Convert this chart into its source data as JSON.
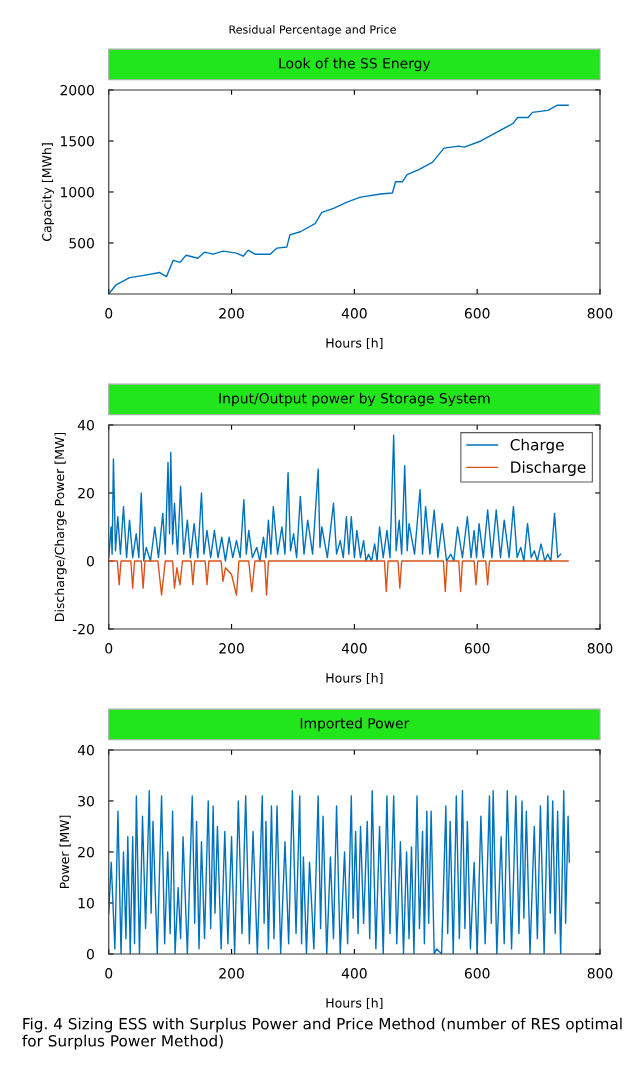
{
  "chart_data": [
    {
      "type": "line",
      "title": "Look of the SS Energy",
      "xlabel": "Hours [h]",
      "ylabel": "Capacity [MWh]",
      "annotations": [
        "Residual Percentage and Price"
      ],
      "xlim": [
        0,
        800
      ],
      "xticks": [
        0,
        200,
        400,
        600,
        800
      ],
      "ylim": [
        0,
        2000
      ],
      "yticks": [
        500,
        1000,
        1500,
        2000
      ],
      "series": [
        {
          "color": "#0072bd",
          "x": [
            0,
            12,
            34,
            55,
            83,
            94,
            105,
            116,
            126,
            145,
            156,
            170,
            186,
            208,
            219,
            227,
            238,
            263,
            274,
            290,
            295,
            312,
            336,
            347,
            366,
            388,
            410,
            443,
            462,
            467,
            478,
            486,
            505,
            527,
            546,
            570,
            579,
            606,
            633,
            658,
            666,
            683,
            690,
            715,
            730,
            748
          ],
          "values": [
            0,
            90,
            160,
            180,
            210,
            170,
            330,
            310,
            380,
            350,
            410,
            390,
            420,
            400,
            370,
            430,
            390,
            390,
            450,
            460,
            580,
            610,
            690,
            800,
            840,
            900,
            950,
            980,
            990,
            1100,
            1100,
            1170,
            1220,
            1290,
            1430,
            1450,
            1440,
            1500,
            1590,
            1670,
            1730,
            1730,
            1780,
            1800,
            1850,
            1850
          ]
        }
      ]
    },
    {
      "type": "line",
      "title": "Input/Output power by Storage System",
      "xlabel": "Hours [h]",
      "ylabel": "Discharge/Charge Power [MW]",
      "legend": "top right",
      "xlim": [
        0,
        800
      ],
      "xticks": [
        0,
        200,
        400,
        600,
        800
      ],
      "ylim": [
        -20,
        40
      ],
      "yticks": [
        -20,
        0,
        20,
        40
      ],
      "series": [
        {
          "name": "Charge",
          "color": "#0072bd",
          "x": [
            0,
            3.8,
            5.5,
            7.6,
            11,
            14.7,
            19,
            24,
            29,
            33.8,
            39,
            44.7,
            49,
            52.9,
            57,
            61,
            68,
            75,
            81,
            88,
            92,
            96.5,
            99,
            101,
            104,
            107,
            112,
            117,
            122,
            128,
            133,
            139,
            145,
            151,
            155,
            160,
            166,
            172,
            178,
            184,
            190,
            196,
            202,
            208,
            214,
            220,
            224,
            228,
            234,
            241,
            246,
            252,
            256,
            260,
            264,
            268,
            275,
            282,
            287,
            292,
            296,
            301,
            306,
            312,
            318,
            324,
            332,
            341,
            344,
            347,
            356,
            366,
            371,
            377,
            382,
            387,
            391,
            395,
            400,
            404,
            410,
            415,
            419,
            423,
            428,
            433,
            437,
            441,
            447,
            453,
            458,
            464,
            468,
            473,
            477,
            482,
            486,
            489,
            498,
            507,
            511,
            516,
            523,
            530,
            536,
            543,
            550,
            557,
            562,
            568,
            576,
            584,
            590,
            595,
            599,
            603,
            610,
            617,
            624,
            631,
            638,
            644,
            652,
            659,
            665,
            671,
            676,
            682,
            688,
            693,
            698,
            704,
            710,
            715,
            720,
            726,
            731,
            736
          ],
          "values": [
            1,
            10,
            2,
            30,
            3,
            13,
            2,
            16,
            1,
            12,
            1,
            8,
            1,
            20,
            0,
            4,
            0,
            10,
            1,
            14,
            2,
            29,
            8,
            32,
            5,
            17,
            2,
            22,
            2,
            12,
            1,
            11,
            1,
            20,
            2,
            9,
            1,
            9,
            1,
            7,
            0,
            7,
            1,
            6,
            1,
            18,
            2,
            9,
            1,
            4,
            0,
            7,
            1,
            12,
            2,
            16,
            2,
            10,
            2,
            26,
            3,
            8,
            1,
            19,
            2,
            12,
            2,
            27,
            4,
            10,
            1,
            17,
            2,
            6,
            1,
            13,
            2,
            13,
            1,
            9,
            1,
            6,
            0,
            2,
            0,
            5,
            0,
            10,
            1,
            9,
            1,
            37,
            3,
            12,
            2,
            28,
            3,
            11,
            2,
            21,
            2,
            16,
            2,
            15,
            1,
            11,
            0,
            2,
            0,
            10,
            1,
            13,
            1,
            9,
            1,
            11,
            1,
            15,
            1,
            15,
            1,
            12,
            1,
            16,
            1,
            4,
            0,
            11,
            1,
            3,
            0,
            5,
            0,
            2,
            0,
            14,
            1,
            2
          ]
        },
        {
          "name": "Discharge",
          "color": "#d95319",
          "x": [
            0,
            14,
            17,
            20,
            36,
            39,
            42,
            53,
            56,
            59,
            80,
            86,
            92,
            104,
            107,
            111,
            116,
            120,
            134,
            137,
            140,
            157,
            160,
            163,
            183,
            186,
            190,
            200,
            208,
            212,
            228,
            233,
            238,
            254,
            257,
            260,
            449,
            452,
            455,
            471,
            474,
            477,
            545,
            548,
            551,
            570,
            573,
            576,
            595,
            598,
            601,
            614,
            617,
            620,
            748
          ],
          "values": [
            0,
            0,
            -7,
            0,
            0,
            -8,
            0,
            0,
            -8,
            0,
            0,
            -10,
            0,
            0,
            -8,
            -2,
            -7,
            0,
            0,
            -7,
            0,
            0,
            -7,
            0,
            0,
            -6,
            -2,
            -4,
            -10,
            0,
            0,
            -9,
            0,
            0,
            -10,
            0,
            0,
            -9,
            0,
            0,
            -8,
            0,
            0,
            -9,
            0,
            0,
            -9,
            0,
            0,
            -7,
            0,
            0,
            -7,
            0,
            0
          ]
        }
      ]
    },
    {
      "type": "line",
      "title": "Imported Power",
      "xlabel": "Hours [h]",
      "ylabel": "Power [MW]",
      "annotations": [
        "Fig. 4 Sizing ESS with Surplus Power and Price Method (number of RES optimal for Surplus Power Method)"
      ],
      "xlim": [
        0,
        800
      ],
      "xticks": [
        0,
        200,
        400,
        600,
        800
      ],
      "ylim": [
        0,
        40
      ],
      "yticks": [
        0,
        10,
        20,
        30,
        40
      ],
      "series": [
        {
          "color": "#0072bd",
          "x": [
            0,
            4,
            10,
            15,
            20,
            24,
            28,
            31,
            35,
            39,
            42,
            45,
            50,
            55,
            60,
            66,
            69,
            72,
            79,
            86,
            91,
            96,
            100,
            104,
            108,
            113,
            117,
            121,
            128,
            136,
            140,
            143,
            147,
            151,
            156,
            162,
            166,
            170,
            173,
            177,
            183,
            189,
            194,
            200,
            205,
            211,
            217,
            223,
            229,
            235,
            242,
            250,
            253,
            256,
            260,
            265,
            269,
            274,
            280,
            287,
            293,
            299,
            305,
            311,
            314,
            317,
            322,
            327,
            334,
            341,
            345,
            349,
            355,
            361,
            366,
            371,
            377,
            384,
            389,
            395,
            398,
            402,
            406,
            410,
            415,
            421,
            425,
            429,
            435,
            441,
            447,
            453,
            458,
            464,
            469,
            475,
            480,
            485,
            489,
            493,
            497,
            502,
            506,
            511,
            514,
            518,
            521,
            525,
            530,
            534,
            542,
            549,
            552,
            556,
            561,
            566,
            571,
            576,
            580,
            584,
            589,
            595,
            600,
            606,
            613,
            620,
            623,
            626,
            632,
            639,
            644,
            649,
            656,
            663,
            668,
            673,
            676,
            680,
            686,
            693,
            698,
            703,
            709,
            715,
            719,
            723,
            727,
            731,
            736,
            741,
            744,
            748,
            750
          ],
          "values": [
            8,
            18,
            1,
            28,
            0,
            20,
            3,
            23,
            0,
            23,
            2,
            31,
            0,
            27,
            5,
            32,
            8,
            26,
            0,
            31,
            2,
            20,
            4,
            28,
            0,
            13,
            3,
            23,
            0,
            31,
            6,
            26,
            1,
            22,
            3,
            30,
            5,
            29,
            8,
            25,
            1,
            24,
            2,
            23,
            0,
            30,
            4,
            31,
            2,
            24,
            0,
            31,
            6,
            26,
            1,
            29,
            3,
            29,
            0,
            22,
            2,
            32,
            4,
            31,
            2,
            19,
            0,
            18,
            1,
            31,
            5,
            27,
            0,
            19,
            3,
            29,
            0,
            20,
            2,
            31,
            7,
            24,
            4,
            25,
            6,
            26,
            3,
            32,
            1,
            25,
            0,
            31,
            4,
            31,
            2,
            22,
            0,
            20,
            3,
            21,
            0,
            31,
            5,
            24,
            2,
            28,
            6,
            28,
            0,
            1,
            0,
            29,
            4,
            26,
            0,
            31,
            3,
            32,
            5,
            26,
            1,
            18,
            0,
            27,
            2,
            31,
            6,
            32,
            0,
            23,
            2,
            32,
            1,
            31,
            4,
            30,
            7,
            28,
            0,
            25,
            3,
            29,
            0,
            31,
            8,
            30,
            4,
            28,
            0,
            32,
            6,
            27,
            18
          ]
        }
      ]
    }
  ]
}
